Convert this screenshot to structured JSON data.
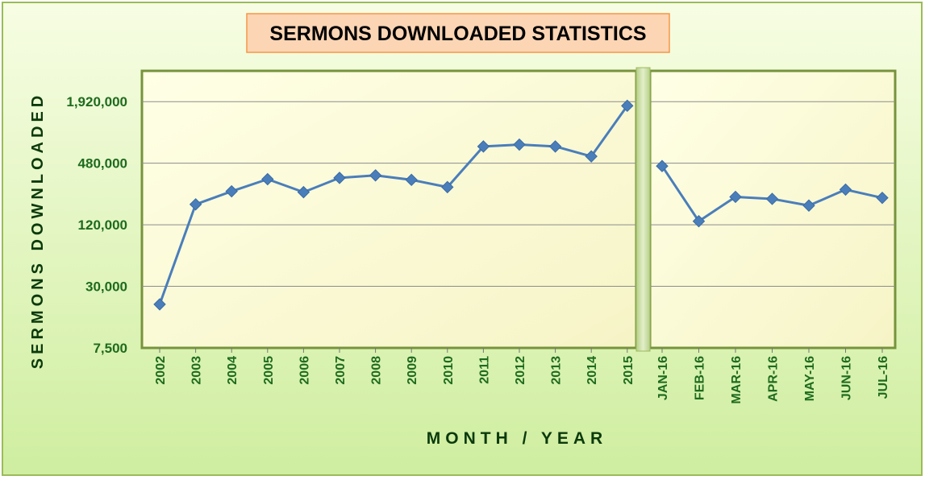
{
  "chart_data": {
    "type": "line",
    "title": "SERMONS DOWNLOADED STATISTICS",
    "xlabel": "MONTH / YEAR",
    "ylabel": "SERMONS DOWNLOADED",
    "y_scale": "log",
    "ylim": [
      7500,
      3840000
    ],
    "y_ticks": [
      "7,500",
      "30,000",
      "120,000",
      "480,000",
      "1,920,000"
    ],
    "y_tick_values": [
      7500,
      30000,
      120000,
      480000,
      1920000
    ],
    "grid": true,
    "legend": "none",
    "colors": {
      "line": "#4a7ebb",
      "marker": "#4a7ebb",
      "axis_text": "#1e6b1e",
      "title_bg": "#fcd5b4"
    },
    "segments": [
      {
        "categories": [
          "2002",
          "2003",
          "2004",
          "2005",
          "2006",
          "2007",
          "2008",
          "2009",
          "2010",
          "2011",
          "2012",
          "2013",
          "2014",
          "2015"
        ],
        "values": [
          20000,
          190000,
          255000,
          335000,
          250000,
          345000,
          365000,
          330000,
          280000,
          700000,
          730000,
          700000,
          560000,
          1750000
        ]
      },
      {
        "categories": [
          "JAN-16",
          "FEB-16",
          "MAR-16",
          "APR-16",
          "MAY-16",
          "JUN-16",
          "JUL-16"
        ],
        "values": [
          450000,
          130000,
          225000,
          215000,
          185000,
          265000,
          220000
        ]
      }
    ]
  }
}
